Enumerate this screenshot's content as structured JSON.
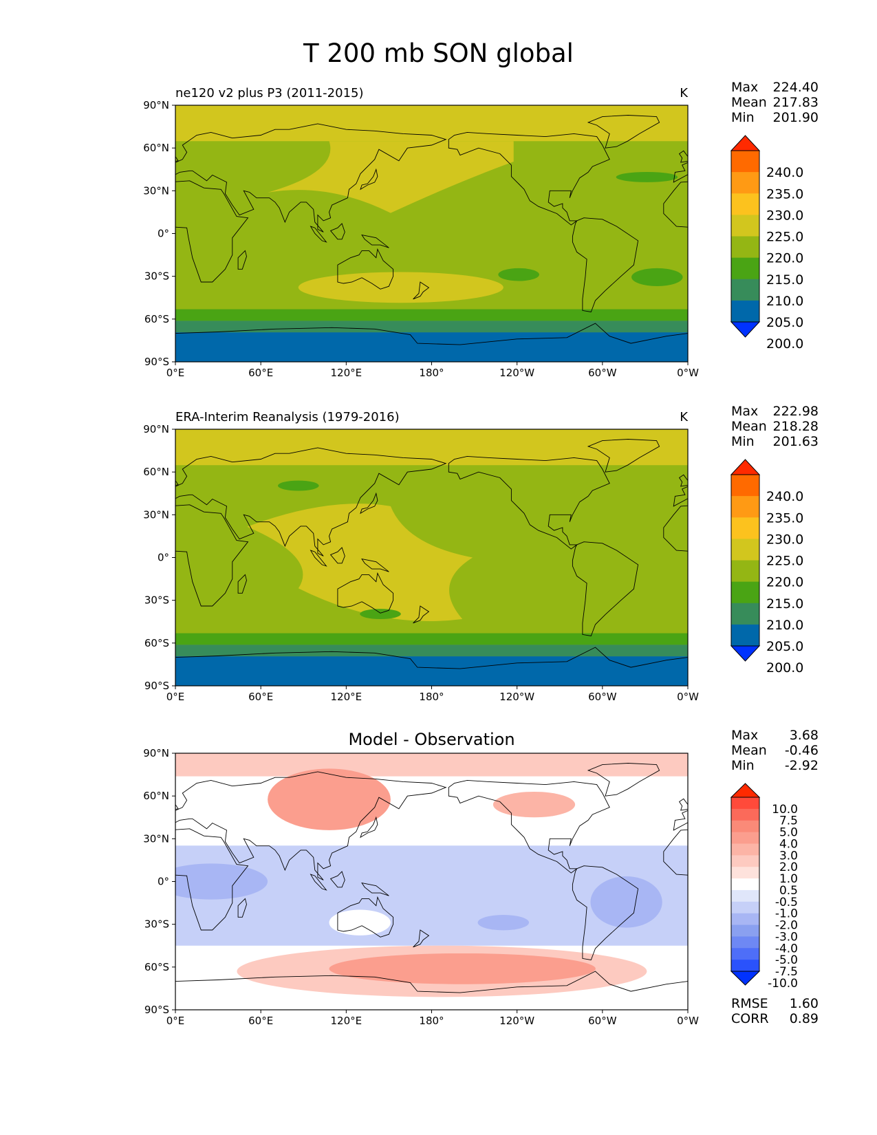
{
  "figure": {
    "title": "T 200 mb SON global"
  },
  "chart_data": [
    {
      "type": "heatmap",
      "panel": "model",
      "title_left": "ne120 v2 plus P3 (2011-2015)",
      "title_right": "K",
      "title_center": "",
      "xticks": [
        "0°E",
        "60°E",
        "120°E",
        "180°",
        "120°W",
        "60°W",
        "0°W"
      ],
      "yticks": [
        "90°N",
        "60°N",
        "30°N",
        "0°",
        "30°S",
        "60°S",
        "90°S"
      ],
      "xlim": [
        0,
        360
      ],
      "ylim": [
        -90,
        90
      ],
      "stats": [
        {
          "label": "Max",
          "value": "224.40"
        },
        {
          "label": "Mean",
          "value": "217.83"
        },
        {
          "label": "Min",
          "value": "201.90"
        }
      ],
      "colorbar": {
        "labels": [
          "240.0",
          "235.0",
          "230.0",
          "225.0",
          "220.0",
          "215.0",
          "210.0",
          "205.0",
          "200.0"
        ],
        "colors": [
          "#ff2a00",
          "#ff6a00",
          "#ff9a14",
          "#fcc21e",
          "#d2c61e",
          "#94b614",
          "#4aa414",
          "#378c5a",
          "#0068aa",
          "#0032ff"
        ]
      },
      "field_note": "zonal temperature bands with embedded regional anomalies"
    },
    {
      "type": "heatmap",
      "panel": "observation",
      "title_left": "ERA-Interim Reanalysis (1979-2016)",
      "title_right": "K",
      "title_center": "",
      "xticks": [
        "0°E",
        "60°E",
        "120°E",
        "180°",
        "120°W",
        "60°W",
        "0°W"
      ],
      "yticks": [
        "90°N",
        "60°N",
        "30°N",
        "0°",
        "30°S",
        "60°S",
        "90°S"
      ],
      "xlim": [
        0,
        360
      ],
      "ylim": [
        -90,
        90
      ],
      "stats": [
        {
          "label": "Max",
          "value": "222.98"
        },
        {
          "label": "Mean",
          "value": "218.28"
        },
        {
          "label": "Min",
          "value": "201.63"
        }
      ],
      "colorbar": {
        "labels": [
          "240.0",
          "235.0",
          "230.0",
          "225.0",
          "220.0",
          "215.0",
          "210.0",
          "205.0",
          "200.0"
        ],
        "colors": [
          "#ff2a00",
          "#ff6a00",
          "#ff9a14",
          "#fcc21e",
          "#d2c61e",
          "#94b614",
          "#4aa414",
          "#378c5a",
          "#0068aa",
          "#0032ff"
        ]
      }
    },
    {
      "type": "heatmap",
      "panel": "difference",
      "title_left": "",
      "title_right": "",
      "title_center": "Model - Observation",
      "xticks": [
        "0°E",
        "60°E",
        "120°E",
        "180°",
        "120°W",
        "60°W",
        "0°W"
      ],
      "yticks": [
        "90°N",
        "60°N",
        "30°N",
        "0°",
        "30°S",
        "60°S",
        "90°S"
      ],
      "xlim": [
        0,
        360
      ],
      "ylim": [
        -90,
        90
      ],
      "stats": [
        {
          "label": "Max",
          "value": "3.68"
        },
        {
          "label": "Mean",
          "value": "-0.46"
        },
        {
          "label": "Min",
          "value": "-2.92"
        }
      ],
      "metrics": [
        {
          "label": "RMSE",
          "value": "1.60"
        },
        {
          "label": "CORR",
          "value": "0.89"
        }
      ],
      "colorbar": {
        "labels": [
          "10.0",
          "7.5",
          "5.0",
          "4.0",
          "3.0",
          "2.0",
          "1.0",
          "0.5",
          "-0.5",
          "-1.0",
          "-2.0",
          "-3.0",
          "-4.0",
          "-5.0",
          "-7.5",
          "-10.0"
        ],
        "colors": [
          "#ff2a00",
          "#ff4a3a",
          "#fb6a5a",
          "#fa8a78",
          "#fb9e8e",
          "#fcb4a6",
          "#fdcac0",
          "#fee2dc",
          "#ffffff",
          "#e0e6fa",
          "#c6d0f8",
          "#a8b6f4",
          "#8aa0f0",
          "#6e88f4",
          "#4e6ef8",
          "#2a52fc",
          "#0032ff"
        ]
      }
    }
  ]
}
